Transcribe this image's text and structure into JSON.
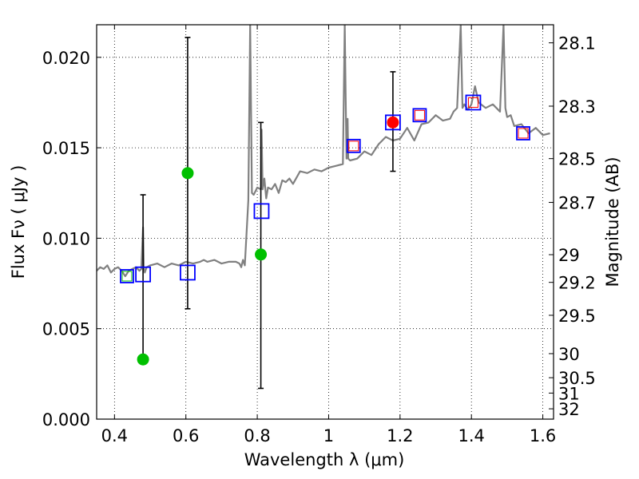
{
  "chart_data": {
    "type": "scatter",
    "xlabel": "Wavelength  λ (μm)",
    "ylabel": "Flux  Fν  ( μJy )",
    "y2label": "Magnitude (AB)",
    "xlim": [
      0.35,
      1.63
    ],
    "ylim": [
      0.0,
      0.0218
    ],
    "grid": true,
    "x_ticks": [
      {
        "value": 0.4,
        "label": "0.4"
      },
      {
        "value": 0.6,
        "label": "0.6"
      },
      {
        "value": 0.8,
        "label": "0.8"
      },
      {
        "value": 1.0,
        "label": "1"
      },
      {
        "value": 1.2,
        "label": "1.2"
      },
      {
        "value": 1.4,
        "label": "1.4"
      },
      {
        "value": 1.6,
        "label": "1.6"
      }
    ],
    "y_ticks": [
      {
        "value": 0.0,
        "label": "0.000"
      },
      {
        "value": 0.005,
        "label": "0.005"
      },
      {
        "value": 0.01,
        "label": "0.010"
      },
      {
        "value": 0.015,
        "label": "0.015"
      },
      {
        "value": 0.02,
        "label": "0.020"
      }
    ],
    "mag_ticks": [
      {
        "label": "28.1",
        "flux": 0.0208
      },
      {
        "label": "28.3",
        "flux": 0.0173
      },
      {
        "label": "28.5",
        "flux": 0.0144
      },
      {
        "label": "28.7",
        "flux": 0.01198
      },
      {
        "label": "29",
        "flux": 0.00909
      },
      {
        "label": "29.2",
        "flux": 0.00756
      },
      {
        "label": "29.5",
        "flux": 0.00574
      },
      {
        "label": "30",
        "flux": 0.00362
      },
      {
        "label": "30.5",
        "flux": 0.00229
      },
      {
        "label": "31",
        "flux": 0.00144
      },
      {
        "label": "32",
        "flux": 0.00057
      }
    ],
    "series": [
      {
        "name": "model spectrum",
        "kind": "line",
        "color": "#808080",
        "x": [
          0.35,
          0.36,
          0.37,
          0.38,
          0.39,
          0.4,
          0.41,
          0.42,
          0.43,
          0.44,
          0.45,
          0.46,
          0.47,
          0.475,
          0.48,
          0.482,
          0.485,
          0.49,
          0.5,
          0.52,
          0.54,
          0.56,
          0.58,
          0.6,
          0.62,
          0.64,
          0.65,
          0.66,
          0.68,
          0.7,
          0.72,
          0.74,
          0.75,
          0.755,
          0.76,
          0.765,
          0.77,
          0.775,
          0.78,
          0.785,
          0.79,
          0.8,
          0.81,
          0.812,
          0.815,
          0.82,
          0.825,
          0.83,
          0.84,
          0.85,
          0.86,
          0.87,
          0.88,
          0.89,
          0.9,
          0.92,
          0.94,
          0.96,
          0.98,
          1.0,
          1.02,
          1.04,
          1.045,
          1.05,
          1.053,
          1.055,
          1.06,
          1.08,
          1.1,
          1.12,
          1.14,
          1.16,
          1.18,
          1.2,
          1.22,
          1.24,
          1.26,
          1.28,
          1.3,
          1.32,
          1.34,
          1.35,
          1.36,
          1.37,
          1.375,
          1.38,
          1.39,
          1.4,
          1.41,
          1.42,
          1.44,
          1.46,
          1.48,
          1.49,
          1.495,
          1.5,
          1.51,
          1.52,
          1.54,
          1.56,
          1.58,
          1.6,
          1.62
        ],
        "y": [
          0.0082,
          0.0084,
          0.0083,
          0.0085,
          0.0081,
          0.0083,
          0.0084,
          0.0082,
          0.0079,
          0.0082,
          0.0083,
          0.0084,
          0.0082,
          0.0083,
          0.0106,
          0.0084,
          0.0081,
          0.0084,
          0.0085,
          0.0086,
          0.0084,
          0.0086,
          0.0085,
          0.0087,
          0.0086,
          0.0087,
          0.0088,
          0.0087,
          0.0088,
          0.0086,
          0.0087,
          0.0087,
          0.0086,
          0.0084,
          0.0088,
          0.0085,
          0.0103,
          0.0121,
          0.0218,
          0.0125,
          0.0124,
          0.0128,
          0.0127,
          0.016,
          0.0127,
          0.0133,
          0.0122,
          0.0128,
          0.0127,
          0.013,
          0.0125,
          0.0132,
          0.0131,
          0.0133,
          0.013,
          0.0137,
          0.0136,
          0.0138,
          0.0137,
          0.0139,
          0.014,
          0.0141,
          0.0218,
          0.0144,
          0.0166,
          0.0144,
          0.0143,
          0.0144,
          0.0148,
          0.0146,
          0.0152,
          0.0156,
          0.0154,
          0.0155,
          0.0161,
          0.0154,
          0.0163,
          0.0164,
          0.0168,
          0.0165,
          0.0166,
          0.017,
          0.0172,
          0.0218,
          0.0172,
          0.0174,
          0.0171,
          0.0174,
          0.0184,
          0.0175,
          0.0172,
          0.0174,
          0.017,
          0.0218,
          0.0172,
          0.0167,
          0.0168,
          0.0162,
          0.0163,
          0.0158,
          0.0161,
          0.0157,
          0.0158
        ]
      },
      {
        "name": "green points with error bars",
        "kind": "points",
        "color": "#00c000",
        "points": [
          {
            "x": 0.48,
            "y": 0.0033,
            "yerr_lo": 0.0033,
            "yerr_hi": 0.0124
          },
          {
            "x": 0.605,
            "y": 0.0136,
            "yerr_lo": 0.0061,
            "yerr_hi": 0.0211
          },
          {
            "x": 0.81,
            "y": 0.0091,
            "yerr_lo": 0.0017,
            "yerr_hi": 0.0164
          }
        ]
      },
      {
        "name": "red point with error bar",
        "kind": "points",
        "color": "#ff0000",
        "points": [
          {
            "x": 1.18,
            "y": 0.0164,
            "yerr_lo": 0.0137,
            "yerr_hi": 0.0192
          }
        ]
      },
      {
        "name": "model photometry (blue squares)",
        "kind": "squares",
        "color": "#0000ff",
        "points": [
          {
            "x": 0.435,
            "y": 0.0079,
            "size": 16
          },
          {
            "x": 0.48,
            "y": 0.008,
            "size": 18
          },
          {
            "x": 0.605,
            "y": 0.0081,
            "size": 18
          },
          {
            "x": 0.812,
            "y": 0.0115,
            "size": 18
          },
          {
            "x": 1.07,
            "y": 0.0151,
            "size": 16
          },
          {
            "x": 1.18,
            "y": 0.0164,
            "size": 18
          },
          {
            "x": 1.255,
            "y": 0.0168,
            "size": 16
          },
          {
            "x": 1.405,
            "y": 0.0175,
            "size": 18
          },
          {
            "x": 1.545,
            "y": 0.0158,
            "size": 16
          }
        ]
      },
      {
        "name": "model bandpass (inner squares)",
        "kind": "inner-squares",
        "points": [
          {
            "x": 0.435,
            "y": 0.0079,
            "color": "#00c000"
          },
          {
            "x": 1.07,
            "y": 0.0151,
            "color": "#ff0000"
          },
          {
            "x": 1.255,
            "y": 0.0168,
            "color": "#ff0000"
          },
          {
            "x": 1.405,
            "y": 0.0175,
            "color": "#ff0000"
          },
          {
            "x": 1.545,
            "y": 0.0158,
            "color": "#ff0000"
          }
        ]
      }
    ]
  }
}
